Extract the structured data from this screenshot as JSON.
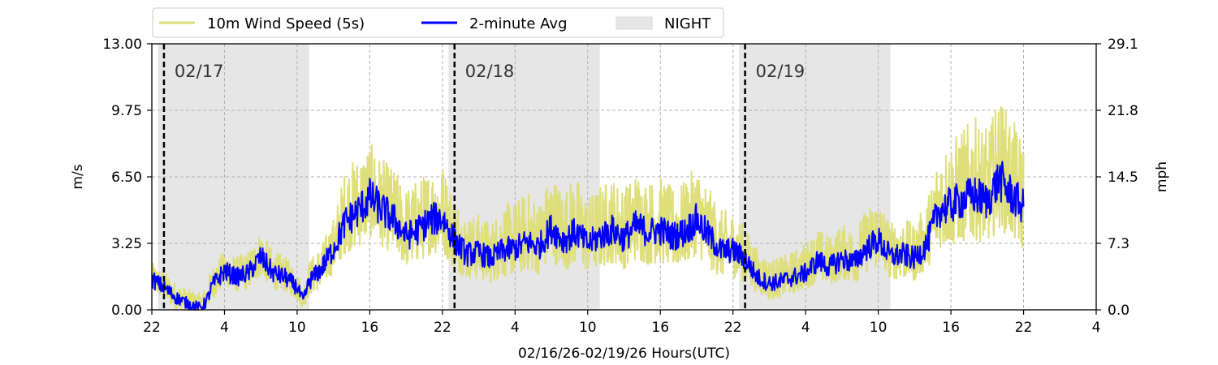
{
  "chart_data": {
    "type": "line",
    "xlabel": "02/16/26-02/19/26  Hours(UTC)",
    "ylabel_left": "m/s",
    "ylabel_right": "mph",
    "x_unit": "hours since 02/16 00:00 UTC",
    "xlim": [
      22,
      100
    ],
    "ylim": [
      0,
      13
    ],
    "ylim_right": [
      0,
      29.1
    ],
    "x_ticks": [
      22,
      28,
      34,
      40,
      46,
      52,
      58,
      64,
      70,
      76,
      82,
      88,
      94,
      100
    ],
    "x_tick_labels": [
      "22",
      "4",
      "10",
      "16",
      "22",
      "4",
      "10",
      "16",
      "22",
      "4",
      "10",
      "16",
      "22",
      "4"
    ],
    "y_ticks": [
      0,
      3.25,
      6.5,
      9.75,
      13
    ],
    "y_tick_labels": [
      "0.00",
      "3.25",
      "6.50",
      "9.75",
      "13.00"
    ],
    "y_right_tick_labels": [
      "0.0",
      "7.3",
      "14.5",
      "21.8",
      "29.1"
    ],
    "grid": true,
    "legend_position": "top-left, above plot",
    "legend": [
      {
        "label": "10m Wind Speed (5s)",
        "kind": "line",
        "color": "#dede7a"
      },
      {
        "label": "2-minute Avg",
        "kind": "line",
        "color": "#0000ff"
      },
      {
        "label": "NIGHT",
        "kind": "patch",
        "color": "#e6e6e6"
      }
    ],
    "night_periods": [
      [
        22.5,
        35.0
      ],
      [
        46.5,
        59.0
      ],
      [
        70.5,
        83.0
      ]
    ],
    "date_markers": [
      {
        "x": 23.0,
        "label": "02/17"
      },
      {
        "x": 47.0,
        "label": "02/18"
      },
      {
        "x": 71.0,
        "label": "02/19"
      }
    ],
    "series": [
      {
        "name": "2-minute Avg",
        "color": "#0000ff",
        "x": [
          22.0,
          23.0,
          24.0,
          25.0,
          26.0,
          26.5,
          27.0,
          28.0,
          29.0,
          30.0,
          31.0,
          32.0,
          33.0,
          34.0,
          34.5,
          35.0,
          36.0,
          37.0,
          38.0,
          39.0,
          40.0,
          41.0,
          42.0,
          43.0,
          44.0,
          45.0,
          46.0,
          47.0,
          48.0,
          49.0,
          50.0,
          51.0,
          52.0,
          53.0,
          54.0,
          55.0,
          56.0,
          57.0,
          58.0,
          59.0,
          60.0,
          61.0,
          62.0,
          63.0,
          64.0,
          65.0,
          66.0,
          67.0,
          68.0,
          69.0,
          70.0,
          71.0,
          72.0,
          73.0,
          74.0,
          75.0,
          76.0,
          77.0,
          78.0,
          79.0,
          80.0,
          81.0,
          82.0,
          83.0,
          84.0,
          85.0,
          86.0,
          87.0,
          88.0,
          89.0,
          90.0,
          91.0,
          92.0,
          93.0,
          94.0
        ],
        "y": [
          1.5,
          1.1,
          0.6,
          0.3,
          0.1,
          0.4,
          1.2,
          1.9,
          1.6,
          1.8,
          2.6,
          1.8,
          1.6,
          1.1,
          0.4,
          1.4,
          2.0,
          3.0,
          4.3,
          4.8,
          5.5,
          4.9,
          4.4,
          3.6,
          3.9,
          4.4,
          4.5,
          3.4,
          2.7,
          2.8,
          2.5,
          2.9,
          3.0,
          3.3,
          3.1,
          4.0,
          3.4,
          3.8,
          3.2,
          3.6,
          3.9,
          3.5,
          4.1,
          3.8,
          3.9,
          3.6,
          3.8,
          4.4,
          3.6,
          2.9,
          2.9,
          2.5,
          1.6,
          1.3,
          1.4,
          1.6,
          1.8,
          2.4,
          2.1,
          2.5,
          2.3,
          3.0,
          3.4,
          2.6,
          2.7,
          2.5,
          3.2,
          4.9,
          5.1,
          5.4,
          5.6,
          5.3,
          6.4,
          5.6,
          5.0
        ]
      },
      {
        "name": "10m Wind Speed (5s)",
        "color": "#dede7a",
        "x": [
          22.0,
          23.0,
          24.0,
          25.0,
          26.0,
          26.5,
          27.0,
          28.0,
          29.0,
          30.0,
          31.0,
          32.0,
          33.0,
          34.0,
          34.5,
          35.0,
          36.0,
          37.0,
          38.0,
          39.0,
          40.0,
          41.0,
          42.0,
          43.0,
          44.0,
          45.0,
          46.0,
          47.0,
          48.0,
          49.0,
          50.0,
          51.0,
          52.0,
          53.0,
          54.0,
          55.0,
          56.0,
          57.0,
          58.0,
          59.0,
          60.0,
          61.0,
          62.0,
          63.0,
          64.0,
          65.0,
          66.0,
          67.0,
          68.0,
          69.0,
          70.0,
          71.0,
          72.0,
          73.0,
          74.0,
          75.0,
          76.0,
          77.0,
          78.0,
          79.0,
          80.0,
          81.0,
          82.0,
          83.0,
          84.0,
          85.0,
          86.0,
          87.0,
          88.0,
          89.0,
          90.0,
          91.0,
          92.0,
          93.0,
          94.0
        ],
        "y_min": [
          0.9,
          0.5,
          0.0,
          0.0,
          0.0,
          0.0,
          0.5,
          1.2,
          0.9,
          1.0,
          1.7,
          1.0,
          0.9,
          0.5,
          0.0,
          0.7,
          1.1,
          1.8,
          2.8,
          3.0,
          3.6,
          3.1,
          2.7,
          2.1,
          2.3,
          2.7,
          2.8,
          2.0,
          1.5,
          1.5,
          1.3,
          1.6,
          1.7,
          1.9,
          1.7,
          2.4,
          1.9,
          2.2,
          1.8,
          2.0,
          2.3,
          2.0,
          2.4,
          2.2,
          2.3,
          2.0,
          2.2,
          2.7,
          2.0,
          1.6,
          1.6,
          1.3,
          0.8,
          0.5,
          0.6,
          0.8,
          1.0,
          1.4,
          1.2,
          1.5,
          1.3,
          1.8,
          2.1,
          1.5,
          1.5,
          1.4,
          2.0,
          3.0,
          3.1,
          3.3,
          3.4,
          3.2,
          4.0,
          3.4,
          2.8
        ],
        "y_max": [
          2.3,
          1.9,
          1.3,
          1.0,
          0.8,
          1.2,
          2.2,
          2.9,
          2.6,
          2.9,
          3.9,
          2.9,
          2.6,
          2.0,
          1.1,
          2.4,
          3.2,
          4.5,
          7.0,
          7.5,
          8.2,
          7.4,
          6.9,
          6.0,
          6.4,
          6.9,
          7.2,
          5.6,
          4.6,
          4.7,
          4.3,
          5.2,
          5.3,
          5.8,
          5.4,
          6.7,
          5.9,
          6.6,
          5.5,
          6.1,
          6.5,
          6.0,
          6.8,
          6.3,
          6.5,
          6.0,
          6.3,
          7.1,
          6.0,
          4.9,
          4.8,
          4.1,
          3.0,
          2.5,
          2.6,
          2.9,
          3.3,
          4.0,
          3.6,
          4.2,
          4.0,
          4.9,
          5.6,
          4.3,
          4.5,
          4.2,
          5.3,
          7.8,
          8.3,
          8.9,
          9.4,
          8.8,
          10.4,
          9.4,
          8.3
        ]
      }
    ]
  }
}
